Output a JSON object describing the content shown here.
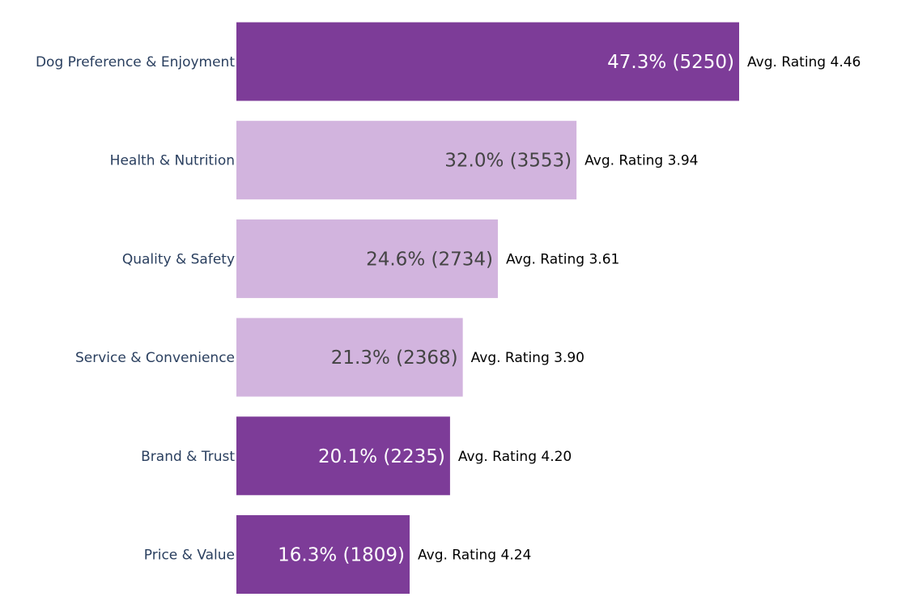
{
  "chart_data": {
    "type": "bar",
    "orientation": "horizontal",
    "categories": [
      "Dog Preference & Enjoyment",
      "Health & Nutrition",
      "Quality & Safety",
      "Service & Convenience",
      "Brand & Trust",
      "Price & Value"
    ],
    "values": [
      47.3,
      32.0,
      24.6,
      21.3,
      20.1,
      16.3
    ],
    "counts": [
      5250,
      3553,
      2734,
      2368,
      2235,
      1809
    ],
    "avg_ratings": [
      4.46,
      3.94,
      3.61,
      3.9,
      4.2,
      4.24
    ],
    "bar_labels": [
      "47.3% (5250)",
      "32.0% (3553)",
      "24.6% (2734)",
      "21.3% (2368)",
      "20.1% (2235)",
      "16.3% (1809)"
    ],
    "side_labels": [
      "Avg. Rating 4.46",
      "Avg. Rating 3.94",
      "Avg. Rating 3.61",
      "Avg. Rating 3.90",
      "Avg. Rating 4.20",
      "Avg. Rating 4.24"
    ],
    "bar_colors": [
      "#7d3c98",
      "#d2b4de",
      "#d2b4de",
      "#d2b4de",
      "#7d3c98",
      "#7d3c98"
    ],
    "label_colors": [
      "#ffffff",
      "#444444",
      "#444444",
      "#444444",
      "#ffffff",
      "#ffffff"
    ],
    "xlim": [
      0,
      47.3
    ],
    "title": "",
    "xlabel": "",
    "ylabel": "",
    "grid": false,
    "legend": false
  }
}
